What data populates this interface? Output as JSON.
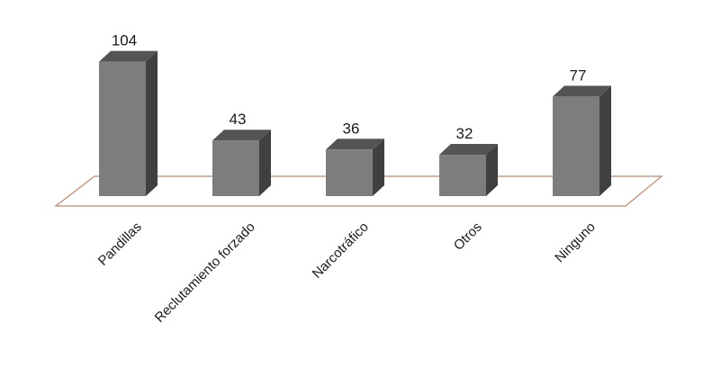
{
  "chart_data": {
    "type": "bar",
    "style": "3d-column",
    "categories": [
      "Pandillas",
      "Reclutamiento forzado",
      "Narcotráfico",
      "Otros",
      "Ninguno"
    ],
    "values": [
      104,
      43,
      36,
      32,
      77
    ],
    "data_labels": [
      "104",
      "43",
      "36",
      "32",
      "77"
    ],
    "ylim": [
      0,
      110
    ],
    "grid": false,
    "legend": "none",
    "colors": {
      "bar_front": "#7d7d7d",
      "bar_side": "#404040",
      "bar_top": "#545454",
      "floor_line": "#c0896a"
    }
  }
}
